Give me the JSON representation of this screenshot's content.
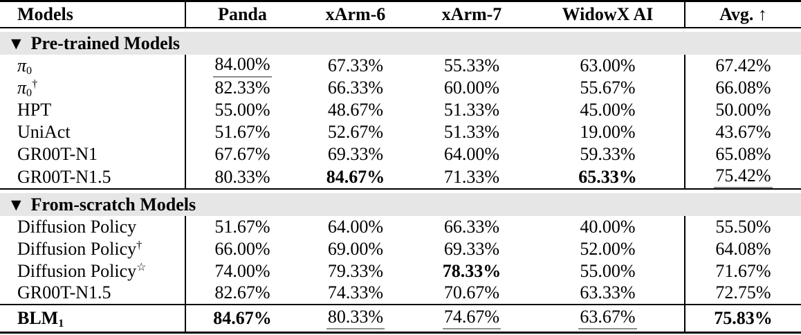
{
  "table": {
    "columns": [
      "Models",
      "Panda",
      "xArm-6",
      "xArm-7",
      "WidowX AI",
      "Avg. ↑"
    ],
    "sections": [
      {
        "title": "Pre-trained Models",
        "icon": "triangle-down",
        "icon_glyph": "▼",
        "rows": [
          {
            "model": {
              "base": "π",
              "italic": true,
              "sub": "0"
            },
            "cells": [
              {
                "v": "84.00%",
                "u": true
              },
              {
                "v": "67.33%"
              },
              {
                "v": "55.33%"
              },
              {
                "v": "63.00%"
              },
              {
                "v": "67.42%"
              }
            ]
          },
          {
            "model": {
              "base": "π",
              "italic": true,
              "sub": "0",
              "sup": "†"
            },
            "cells": [
              {
                "v": "82.33%"
              },
              {
                "v": "66.33%"
              },
              {
                "v": "60.00%"
              },
              {
                "v": "55.67%"
              },
              {
                "v": "66.08%"
              }
            ]
          },
          {
            "model": {
              "base": "HPT"
            },
            "cells": [
              {
                "v": "55.00%"
              },
              {
                "v": "48.67%"
              },
              {
                "v": "51.33%"
              },
              {
                "v": "45.00%"
              },
              {
                "v": "50.00%"
              }
            ]
          },
          {
            "model": {
              "base": "UniAct"
            },
            "cells": [
              {
                "v": "51.67%"
              },
              {
                "v": "52.67%"
              },
              {
                "v": "51.33%"
              },
              {
                "v": "19.00%"
              },
              {
                "v": "43.67%"
              }
            ]
          },
          {
            "model": {
              "base": "GR00T-N1"
            },
            "cells": [
              {
                "v": "67.67%"
              },
              {
                "v": "69.33%"
              },
              {
                "v": "64.00%"
              },
              {
                "v": "59.33%"
              },
              {
                "v": "65.08%"
              }
            ]
          },
          {
            "model": {
              "base": "GR00T-N1.5"
            },
            "cells": [
              {
                "v": "80.33%"
              },
              {
                "v": "84.67%",
                "b": true
              },
              {
                "v": "71.33%"
              },
              {
                "v": "65.33%",
                "b": true
              },
              {
                "v": "75.42%",
                "u": true
              }
            ]
          }
        ]
      },
      {
        "title": "From-scratch Models",
        "icon": "triangle-down",
        "icon_glyph": "▼",
        "rows": [
          {
            "model": {
              "base": "Diffusion Policy"
            },
            "cells": [
              {
                "v": "51.67%"
              },
              {
                "v": "64.00%"
              },
              {
                "v": "66.33%"
              },
              {
                "v": "40.00%"
              },
              {
                "v": "55.50%"
              }
            ]
          },
          {
            "model": {
              "base": "Diffusion Policy",
              "sup": "†"
            },
            "cells": [
              {
                "v": "66.00%"
              },
              {
                "v": "69.00%"
              },
              {
                "v": "69.33%"
              },
              {
                "v": "52.00%"
              },
              {
                "v": "64.08%"
              }
            ]
          },
          {
            "model": {
              "base": "Diffusion Policy",
              "sup": "☆"
            },
            "cells": [
              {
                "v": "74.00%"
              },
              {
                "v": "79.33%"
              },
              {
                "v": "78.33%",
                "b": true
              },
              {
                "v": "55.00%"
              },
              {
                "v": "71.67%"
              }
            ]
          },
          {
            "model": {
              "base": "GR00T-N1.5"
            },
            "cells": [
              {
                "v": "82.67%"
              },
              {
                "v": "74.33%"
              },
              {
                "v": "70.67%"
              },
              {
                "v": "63.33%"
              },
              {
                "v": "72.75%"
              }
            ]
          }
        ]
      }
    ],
    "footer": {
      "model": {
        "base": "BLM",
        "sub": "1",
        "bold": true
      },
      "cells": [
        {
          "v": "84.67%",
          "b": true
        },
        {
          "v": "80.33%",
          "u": true
        },
        {
          "v": "74.67%",
          "u": true
        },
        {
          "v": "63.67%",
          "u": true
        },
        {
          "v": "75.83%",
          "b": true
        }
      ]
    }
  },
  "colors": {
    "section_band": "#e6e6e6",
    "underline": "#8c8c8c",
    "rule": "#000000",
    "text": "#000000",
    "background": "#ffffff"
  }
}
